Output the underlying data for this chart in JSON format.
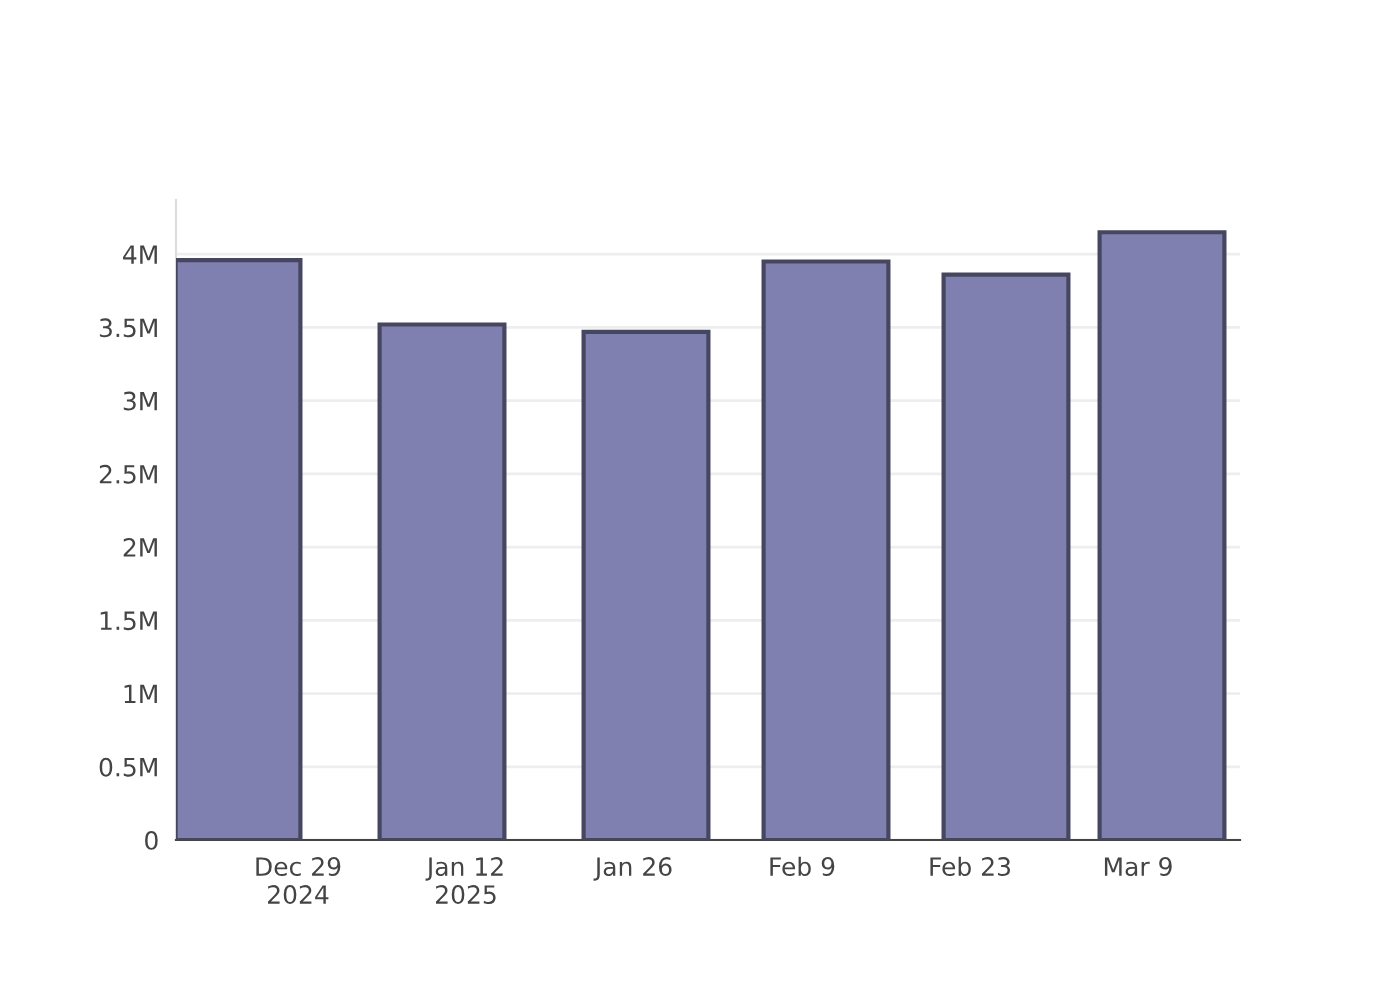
{
  "chart_data": {
    "type": "bar",
    "x": [
      "2024-12-24",
      "2025-01-10",
      "2025-01-27",
      "2025-02-11",
      "2025-02-26",
      "2025-03-11"
    ],
    "values": [
      3960000,
      3520000,
      3470000,
      3950000,
      3860000,
      4150000
    ],
    "color": "#8080b0",
    "xlim": [
      "2024-12-18T20:00",
      "2025-03-17T12:00"
    ],
    "xticks": [
      {
        "value": "2024-12-29",
        "label": "Dec 29\n2024"
      },
      {
        "value": "2025-01-12",
        "label": "Jan 12\n2025"
      },
      {
        "value": "2025-01-26",
        "label": "Jan 26"
      },
      {
        "value": "2025-02-09",
        "label": "Feb 9"
      },
      {
        "value": "2025-02-23",
        "label": "Feb 23"
      },
      {
        "value": "2025-03-09",
        "label": "Mar 9"
      }
    ],
    "ylim": [
      0,
      4370000
    ],
    "yticks": [
      0,
      {
        "value": 500000,
        "label": "0.5M"
      },
      {
        "value": 1000000,
        "label": "1M"
      },
      {
        "value": 1500000,
        "label": "1.5M"
      },
      {
        "value": 2000000,
        "label": "2M"
      },
      {
        "value": 2500000,
        "label": "2.5M"
      },
      {
        "value": 3000000,
        "label": "3M"
      },
      {
        "value": 3500000,
        "label": "3.5M"
      },
      {
        "value": 4000000,
        "label": "4M"
      }
    ],
    "grid": "y"
  }
}
